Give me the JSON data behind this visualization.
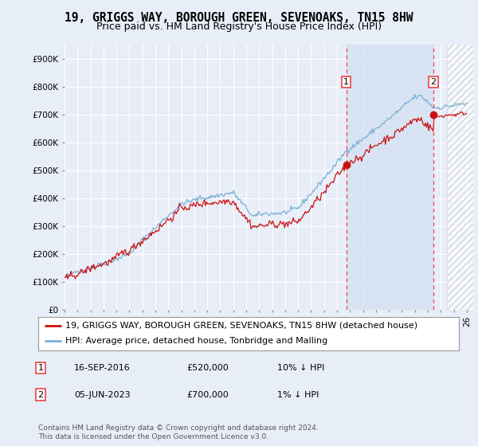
{
  "title": "19, GRIGGS WAY, BOROUGH GREEN, SEVENOAKS, TN15 8HW",
  "subtitle": "Price paid vs. HM Land Registry's House Price Index (HPI)",
  "ylabel_ticks": [
    "£0",
    "£100K",
    "£200K",
    "£300K",
    "£400K",
    "£500K",
    "£600K",
    "£700K",
    "£800K",
    "£900K"
  ],
  "ytick_values": [
    0,
    100000,
    200000,
    300000,
    400000,
    500000,
    600000,
    700000,
    800000,
    900000
  ],
  "ylim": [
    0,
    950000
  ],
  "xlim_start": 1995.0,
  "xlim_end": 2026.5,
  "background_color": "#e8eef8",
  "plot_bg_color": "#e8eef8",
  "grid_color": "#ffffff",
  "hpi_color": "#7bafd4",
  "price_color": "#cc1111",
  "vline_color": "#ee4444",
  "shade_color": "#d0dff0",
  "sale1_x": 2016.71,
  "sale1_y": 520000,
  "sale2_x": 2023.43,
  "sale2_y": 700000,
  "sale1_label": "16-SEP-2016",
  "sale1_price": "£520,000",
  "sale1_hpi": "10% ↓ HPI",
  "sale2_label": "05-JUN-2023",
  "sale2_price": "£700,000",
  "sale2_hpi": "1% ↓ HPI",
  "legend_line1": "19, GRIGGS WAY, BOROUGH GREEN, SEVENOAKS, TN15 8HW (detached house)",
  "legend_line2": "HPI: Average price, detached house, Tonbridge and Malling",
  "footnote": "Contains HM Land Registry data © Crown copyright and database right 2024.\nThis data is licensed under the Open Government Licence v3.0.",
  "title_fontsize": 10.5,
  "subtitle_fontsize": 9,
  "tick_fontsize": 7.5,
  "legend_fontsize": 8,
  "footnote_fontsize": 6.5
}
